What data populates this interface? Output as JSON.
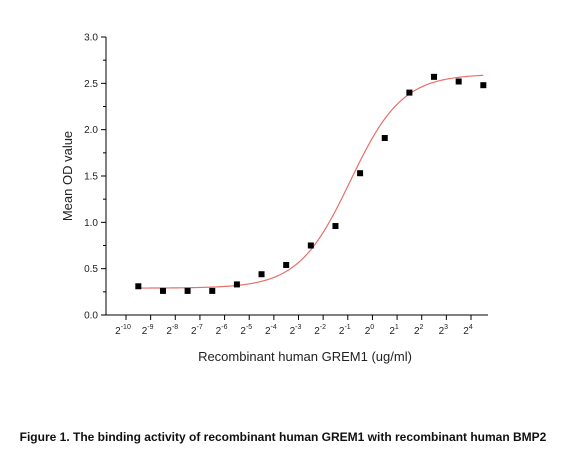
{
  "chart_data": {
    "type": "scatter",
    "xlabel": "Recombinant human GREM1 (ug/ml)",
    "ylabel": "Mean OD value",
    "x_scale": "log2",
    "x_tick_exponents": [
      -10,
      -9,
      -8,
      -7,
      -6,
      -5,
      -4,
      -3,
      -2,
      -1,
      0,
      1,
      2,
      3,
      4
    ],
    "x_tick_labels": [
      "2^-10",
      "2^-9",
      "2^-8",
      "2^-7",
      "2^-6",
      "2^-5",
      "2^-4",
      "2^-3",
      "2^-2",
      "2^-1",
      "2^0",
      "2^1",
      "2^2",
      "2^3",
      "2^4"
    ],
    "ylim": [
      0.0,
      3.0
    ],
    "y_ticks": [
      "0.0",
      "0.5",
      "1.0",
      "1.5",
      "2.0",
      "2.5",
      "3.0"
    ],
    "series": [
      {
        "marker": "square",
        "color": "#000000",
        "x_exponent": [
          -9.5,
          -8.5,
          -7.5,
          -6.5,
          -5.5,
          -4.5,
          -3.5,
          -2.5,
          -1.5,
          -0.5,
          0.5,
          1.5,
          2.5,
          3.5,
          4.5
        ],
        "y": [
          0.31,
          0.26,
          0.26,
          0.26,
          0.33,
          0.44,
          0.54,
          0.75,
          0.96,
          1.53,
          1.91,
          2.4,
          2.57,
          2.52,
          2.48
        ]
      }
    ],
    "fit_curve": {
      "color": "#e8706a",
      "bottom": 0.29,
      "top": 2.6,
      "midpoint_exponent": -0.9,
      "slope": 0.95
    },
    "caption": "Figure 1. The binding activity of recombinant human GREM1 with recombinant human BMP2"
  }
}
